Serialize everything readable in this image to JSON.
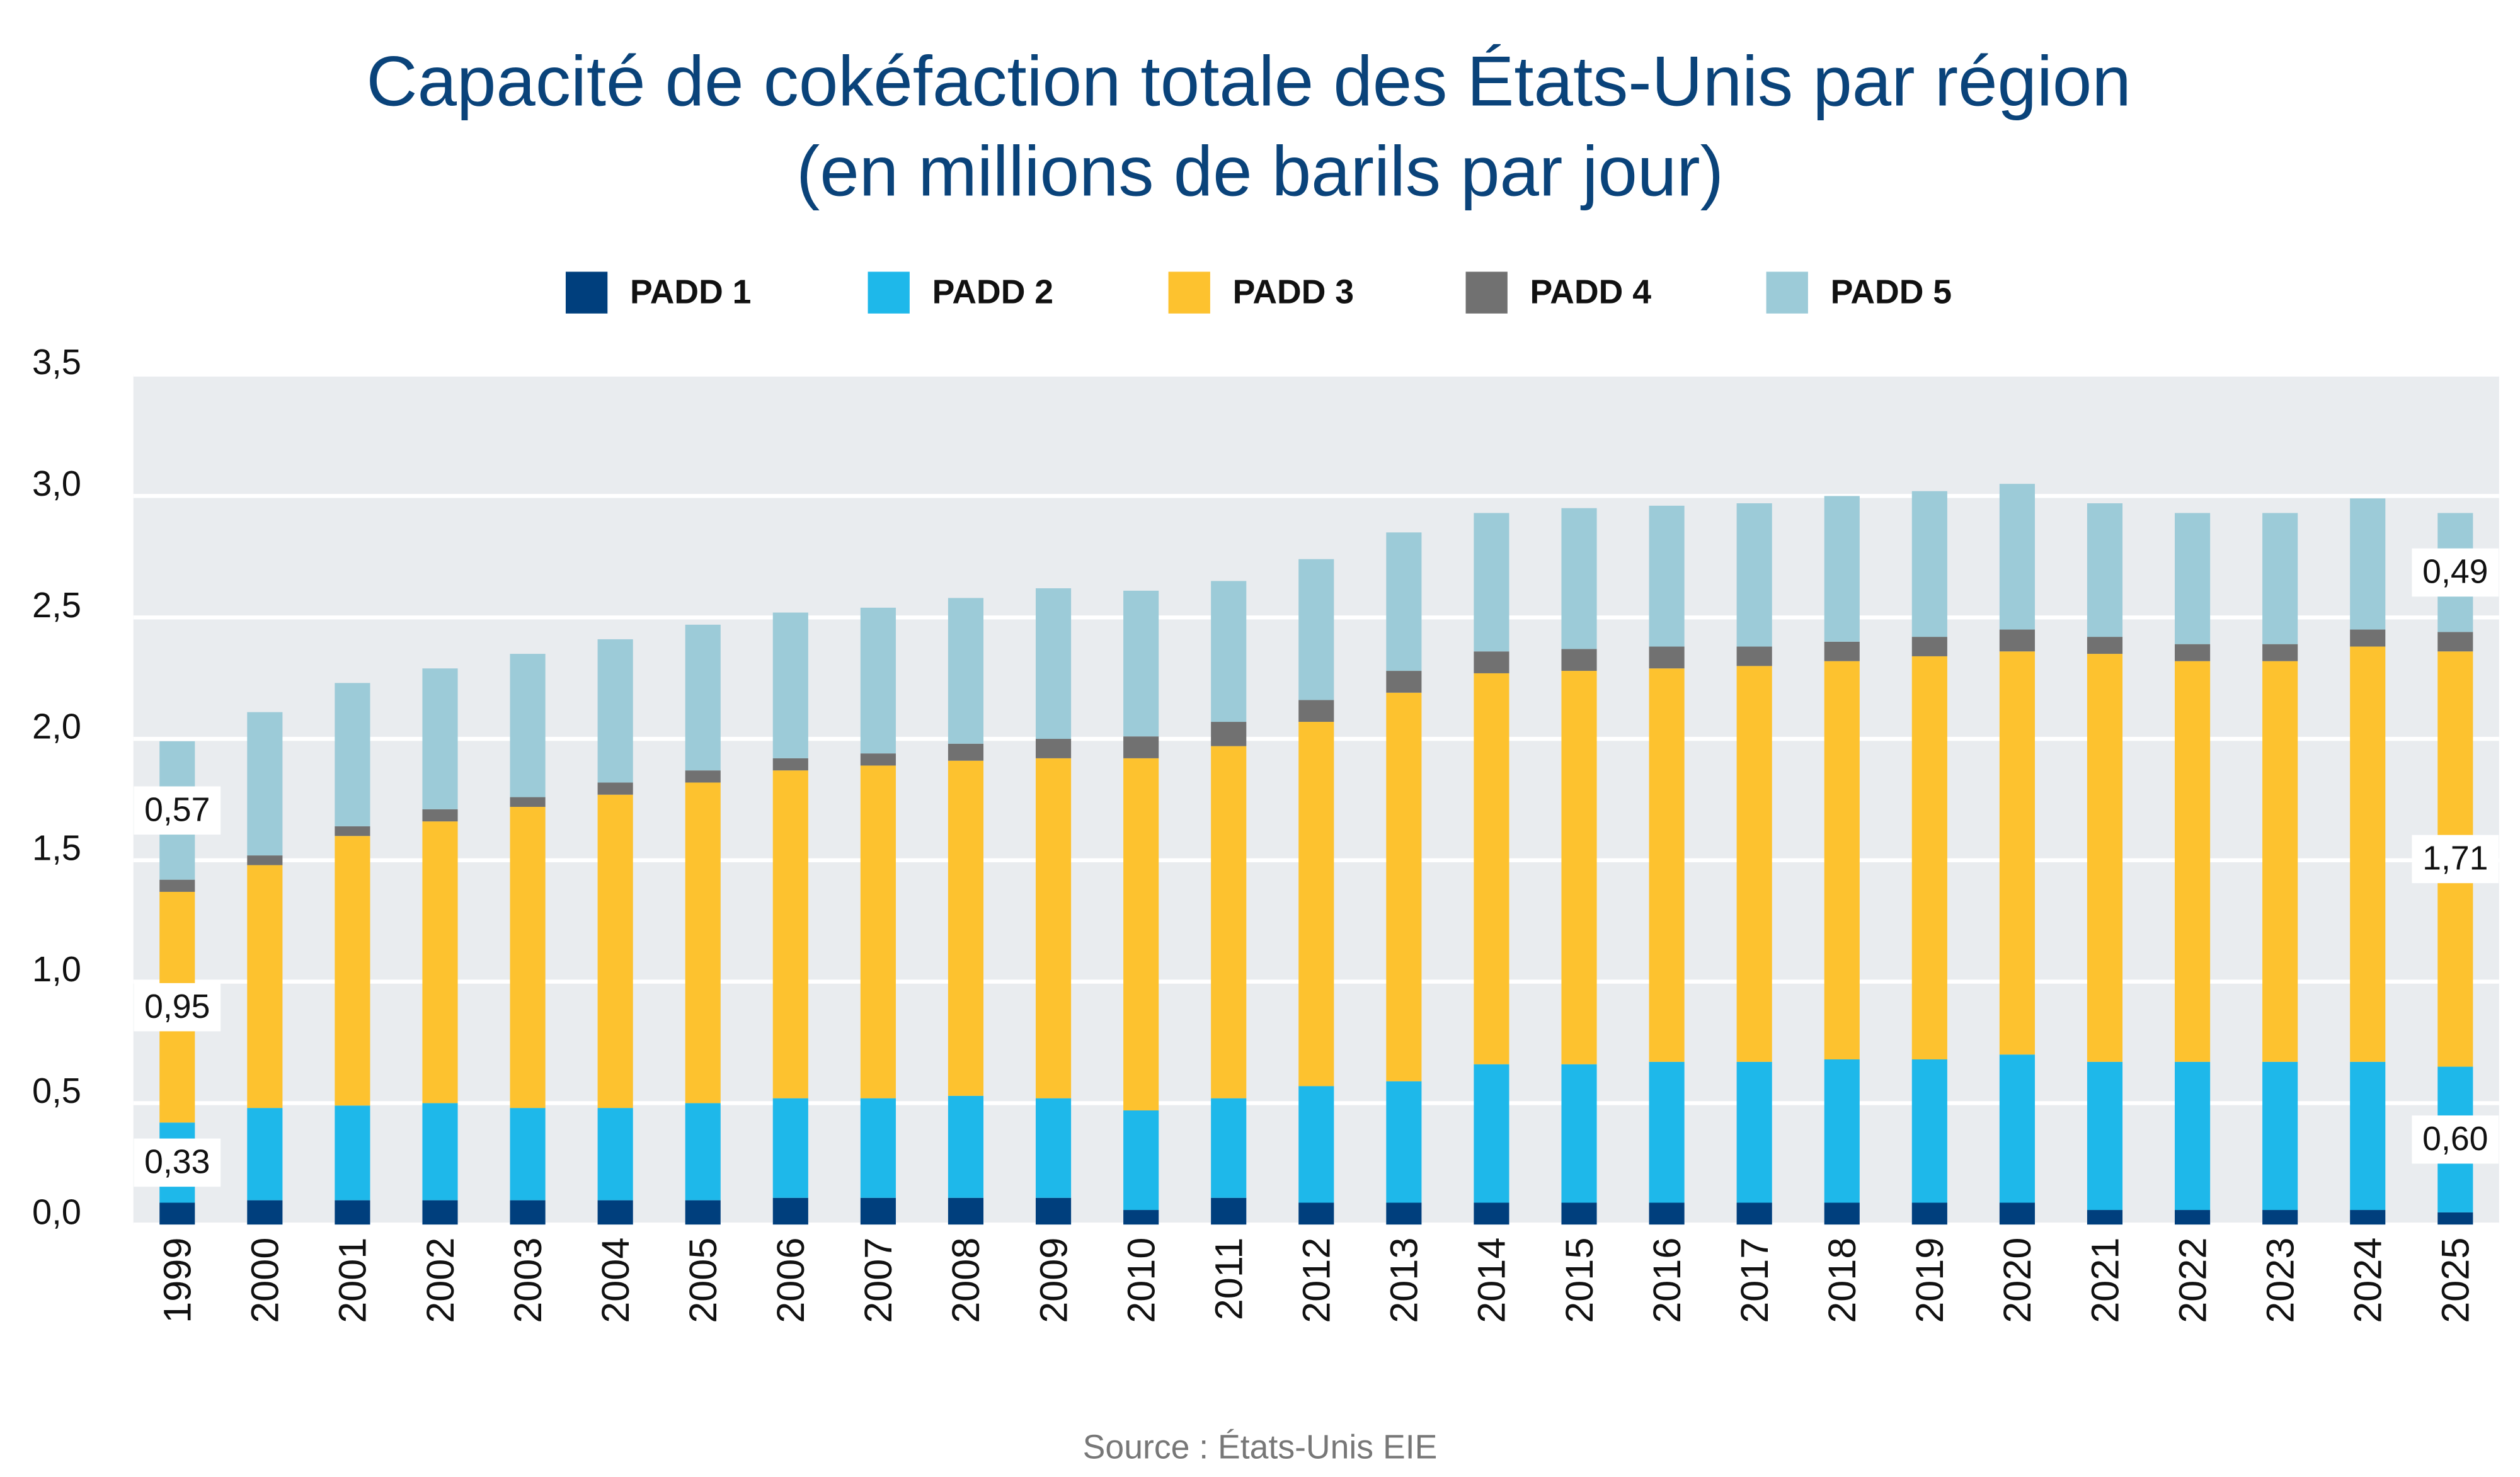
{
  "chart_data": {
    "type": "stacked_bar",
    "title": "Capacité de cokéfaction totale des États-Unis par région",
    "subtitle": "(en millions de barils par jour)",
    "source": "Source : États-Unis EIE",
    "categories": [
      "1999",
      "2000",
      "2001",
      "2002",
      "2003",
      "2004",
      "2005",
      "2006",
      "2007",
      "2008",
      "2009",
      "2010",
      "2011",
      "2012",
      "2013",
      "2014",
      "2015",
      "2016",
      "2017",
      "2018",
      "2019",
      "2020",
      "2021",
      "2022",
      "2023",
      "2024",
      "2025"
    ],
    "series": [
      {
        "name": "PADD 1",
        "color": "#003f7d",
        "values": [
          0.09,
          0.1,
          0.1,
          0.1,
          0.1,
          0.1,
          0.1,
          0.11,
          0.11,
          0.11,
          0.11,
          0.06,
          0.11,
          0.09,
          0.09,
          0.09,
          0.09,
          0.09,
          0.09,
          0.09,
          0.09,
          0.09,
          0.06,
          0.06,
          0.06,
          0.06,
          0.05
        ]
      },
      {
        "name": "PADD 2",
        "color": "#1eb8ea",
        "values": [
          0.33,
          0.38,
          0.39,
          0.4,
          0.38,
          0.38,
          0.4,
          0.41,
          0.41,
          0.42,
          0.41,
          0.41,
          0.41,
          0.48,
          0.5,
          0.57,
          0.57,
          0.58,
          0.58,
          0.59,
          0.59,
          0.61,
          0.61,
          0.61,
          0.61,
          0.61,
          0.6
        ],
        "value_labels": [
          "0,33",
          null,
          null,
          null,
          null,
          null,
          null,
          null,
          null,
          null,
          null,
          null,
          null,
          null,
          null,
          null,
          null,
          null,
          null,
          null,
          null,
          null,
          null,
          null,
          null,
          null,
          "0,60"
        ]
      },
      {
        "name": "PADD 3",
        "color": "#fdc22f",
        "values": [
          0.95,
          1.0,
          1.11,
          1.16,
          1.24,
          1.29,
          1.32,
          1.35,
          1.37,
          1.38,
          1.4,
          1.45,
          1.45,
          1.5,
          1.6,
          1.61,
          1.62,
          1.62,
          1.63,
          1.64,
          1.66,
          1.66,
          1.68,
          1.65,
          1.65,
          1.71,
          1.71
        ],
        "value_labels": [
          "0,95",
          null,
          null,
          null,
          null,
          null,
          null,
          null,
          null,
          null,
          null,
          null,
          null,
          null,
          null,
          null,
          null,
          null,
          null,
          null,
          null,
          null,
          null,
          null,
          null,
          null,
          "1,71"
        ]
      },
      {
        "name": "PADD 4",
        "color": "#717171",
        "values": [
          0.05,
          0.04,
          0.04,
          0.05,
          0.04,
          0.05,
          0.05,
          0.05,
          0.05,
          0.07,
          0.08,
          0.09,
          0.1,
          0.09,
          0.09,
          0.09,
          0.09,
          0.09,
          0.08,
          0.08,
          0.08,
          0.09,
          0.07,
          0.07,
          0.07,
          0.07,
          0.08
        ]
      },
      {
        "name": "PADD 5",
        "color": "#9ccbd8",
        "values": [
          0.57,
          0.59,
          0.59,
          0.58,
          0.59,
          0.59,
          0.6,
          0.6,
          0.6,
          0.6,
          0.62,
          0.6,
          0.58,
          0.58,
          0.57,
          0.57,
          0.58,
          0.58,
          0.59,
          0.6,
          0.6,
          0.6,
          0.55,
          0.54,
          0.54,
          0.54,
          0.49
        ],
        "value_labels": [
          "0,57",
          null,
          null,
          null,
          null,
          null,
          null,
          null,
          null,
          null,
          null,
          null,
          null,
          null,
          null,
          null,
          null,
          null,
          null,
          null,
          null,
          null,
          null,
          null,
          null,
          null,
          "0,49"
        ]
      }
    ],
    "ylim": [
      0,
      3.5
    ],
    "yticks": [
      {
        "value": 0,
        "label": "0,0"
      },
      {
        "value": 0.5,
        "label": "0,5"
      },
      {
        "value": 1,
        "label": "1,0"
      },
      {
        "value": 1.5,
        "label": "1,5"
      },
      {
        "value": 2,
        "label": "2,0"
      },
      {
        "value": 2.5,
        "label": "2,5"
      },
      {
        "value": 3,
        "label": "3,0"
      },
      {
        "value": 3.5,
        "label": "3,5"
      }
    ],
    "grid": true,
    "plot_background": "#e9ecef",
    "legend": "top"
  }
}
